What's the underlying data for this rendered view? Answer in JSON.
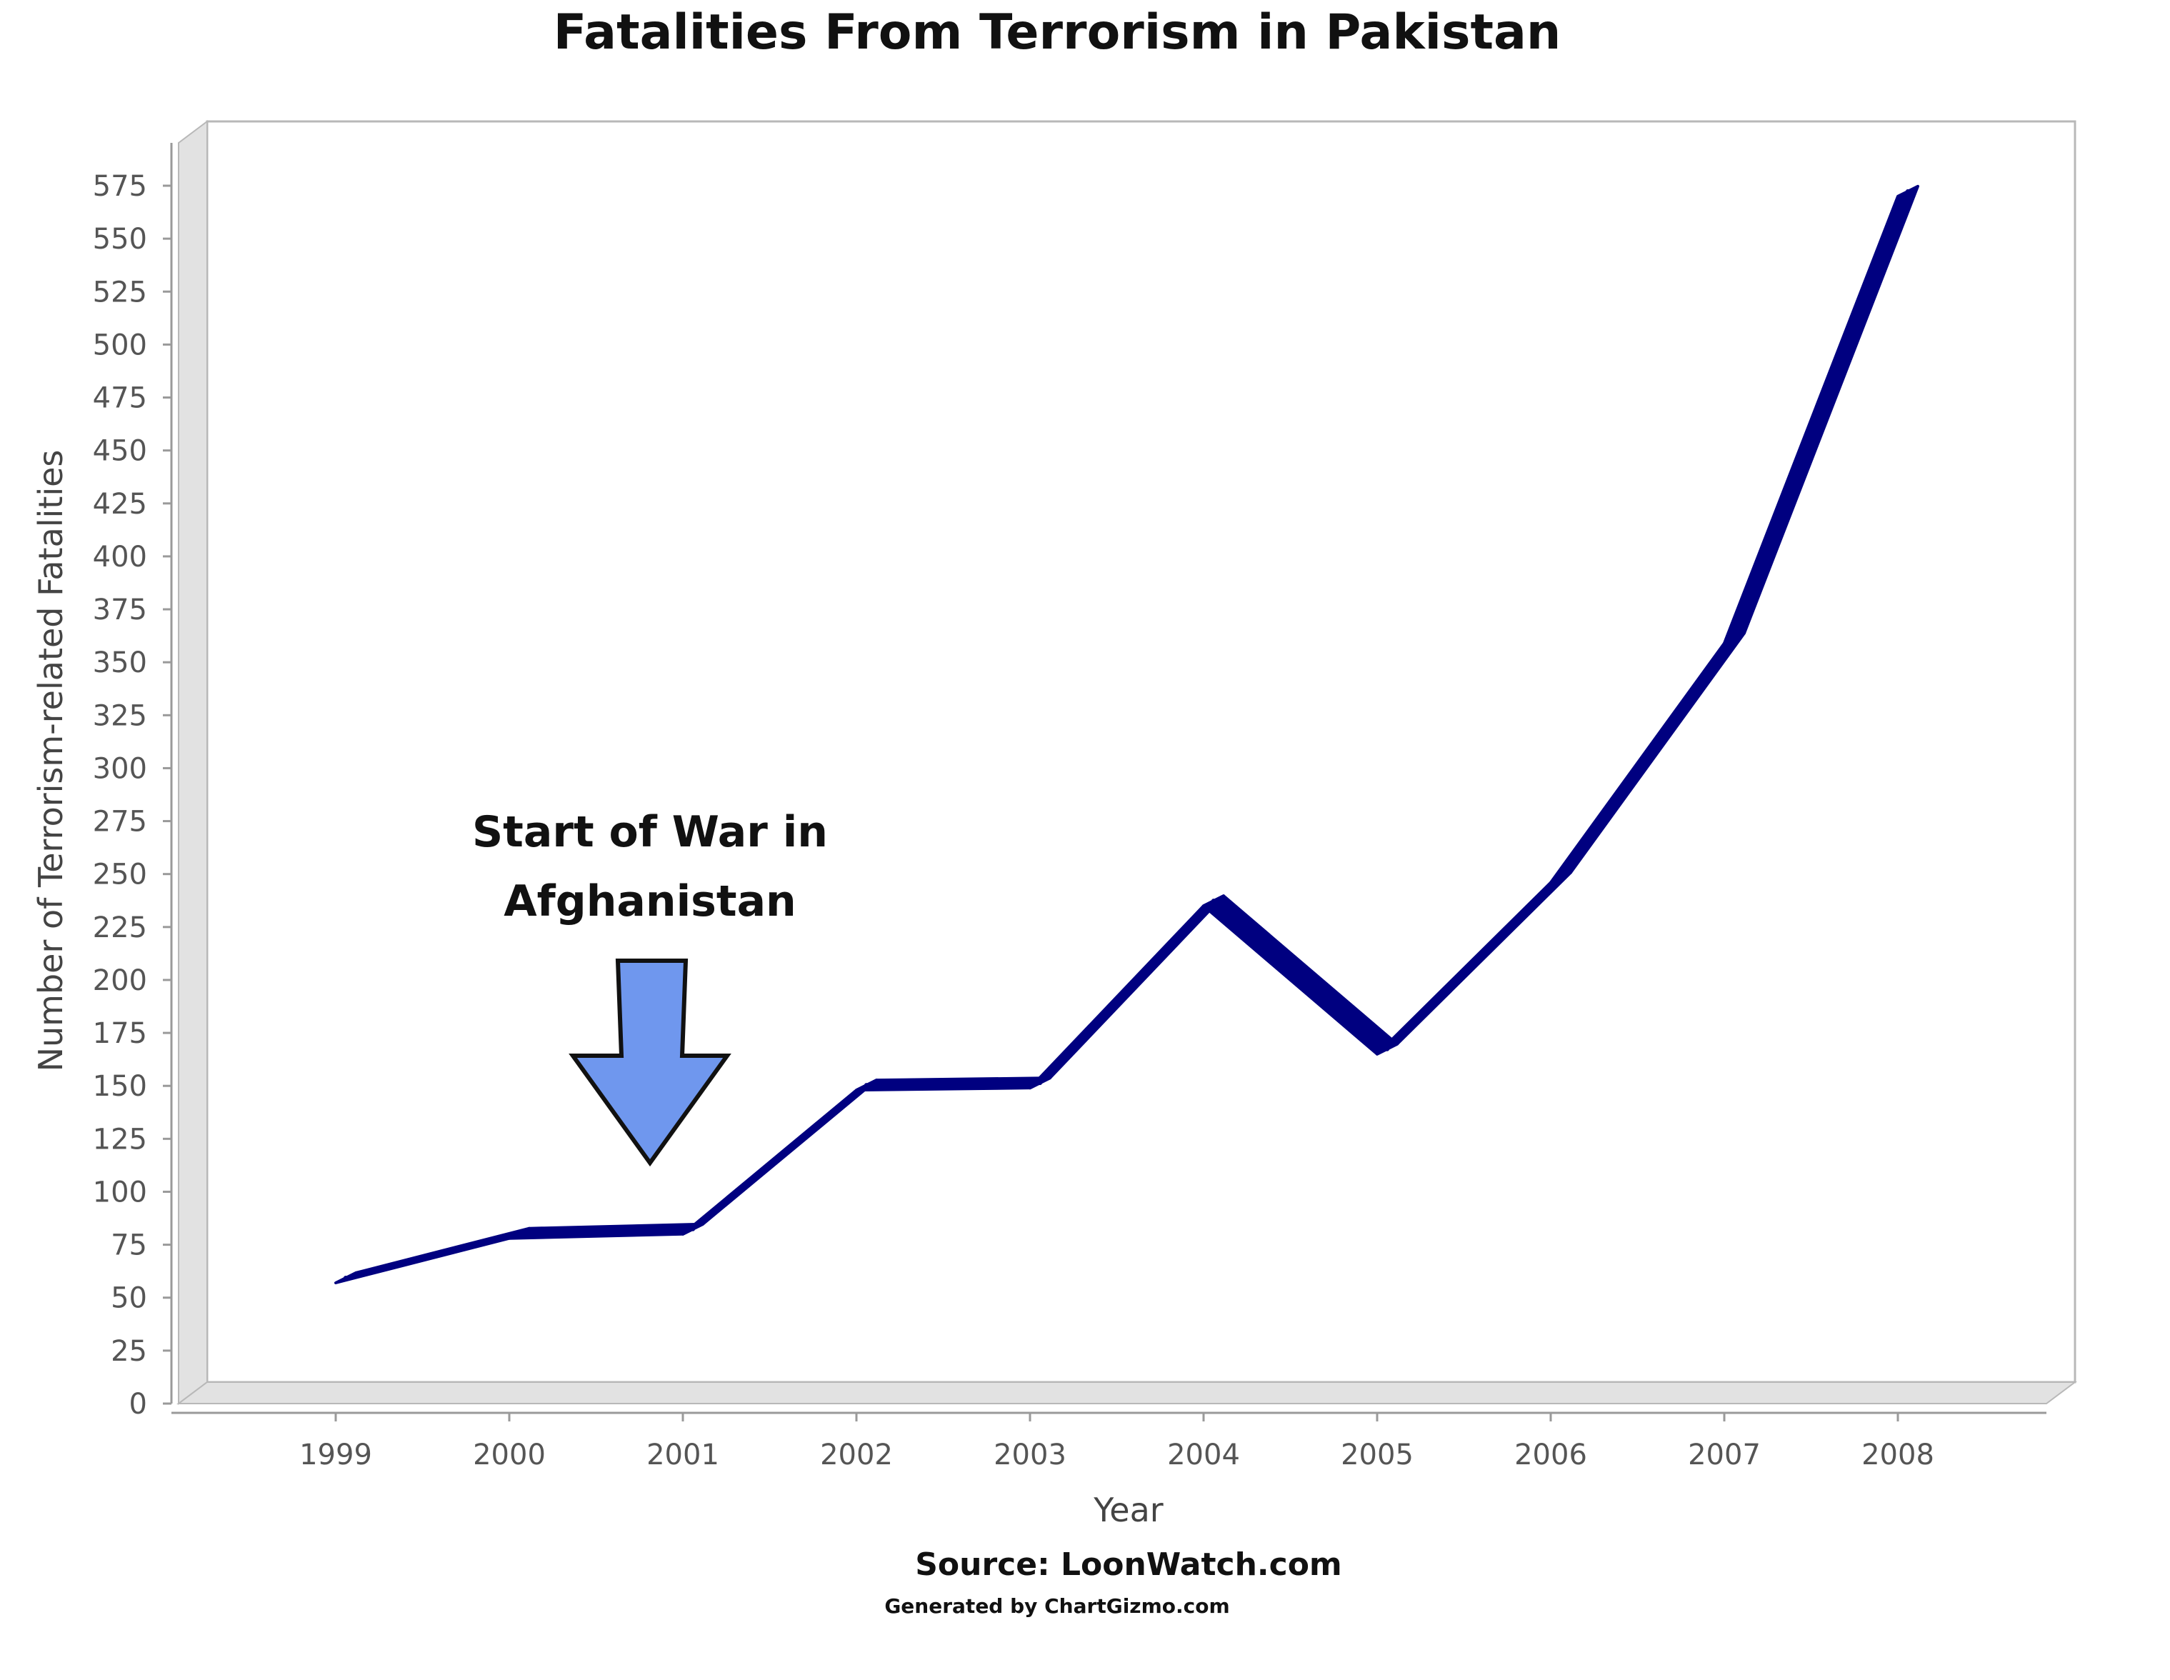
{
  "chart_data": {
    "type": "line",
    "title": "Fatalities From Terrorism in Pakistan",
    "xlabel": "Year",
    "ylabel": "Number of Terrorism-related Fatalities",
    "categories": [
      "1999",
      "2000",
      "2001",
      "2002",
      "2003",
      "2004",
      "2005",
      "2006",
      "2007",
      "2008"
    ],
    "series": [
      {
        "values": [
          57,
          78,
          80,
          148,
          149,
          235,
          165,
          246,
          359,
          570
        ]
      }
    ],
    "ylim": [
      0,
      575
    ],
    "yticks": [
      0,
      25,
      50,
      75,
      100,
      125,
      150,
      175,
      200,
      225,
      250,
      275,
      300,
      325,
      350,
      375,
      400,
      425,
      450,
      475,
      500,
      525,
      550,
      575
    ],
    "grid": false,
    "legend": "none",
    "annotation": {
      "lines": [
        "Start of War in",
        "Afghanistan"
      ],
      "points_to": "2001"
    },
    "source": "Source: LoonWatch.com",
    "generated": "Generated by ChartGizmo.com",
    "colors": {
      "line": "#000080",
      "arrow": "#6f97ee",
      "thin_line": "#8c8c8c"
    }
  }
}
